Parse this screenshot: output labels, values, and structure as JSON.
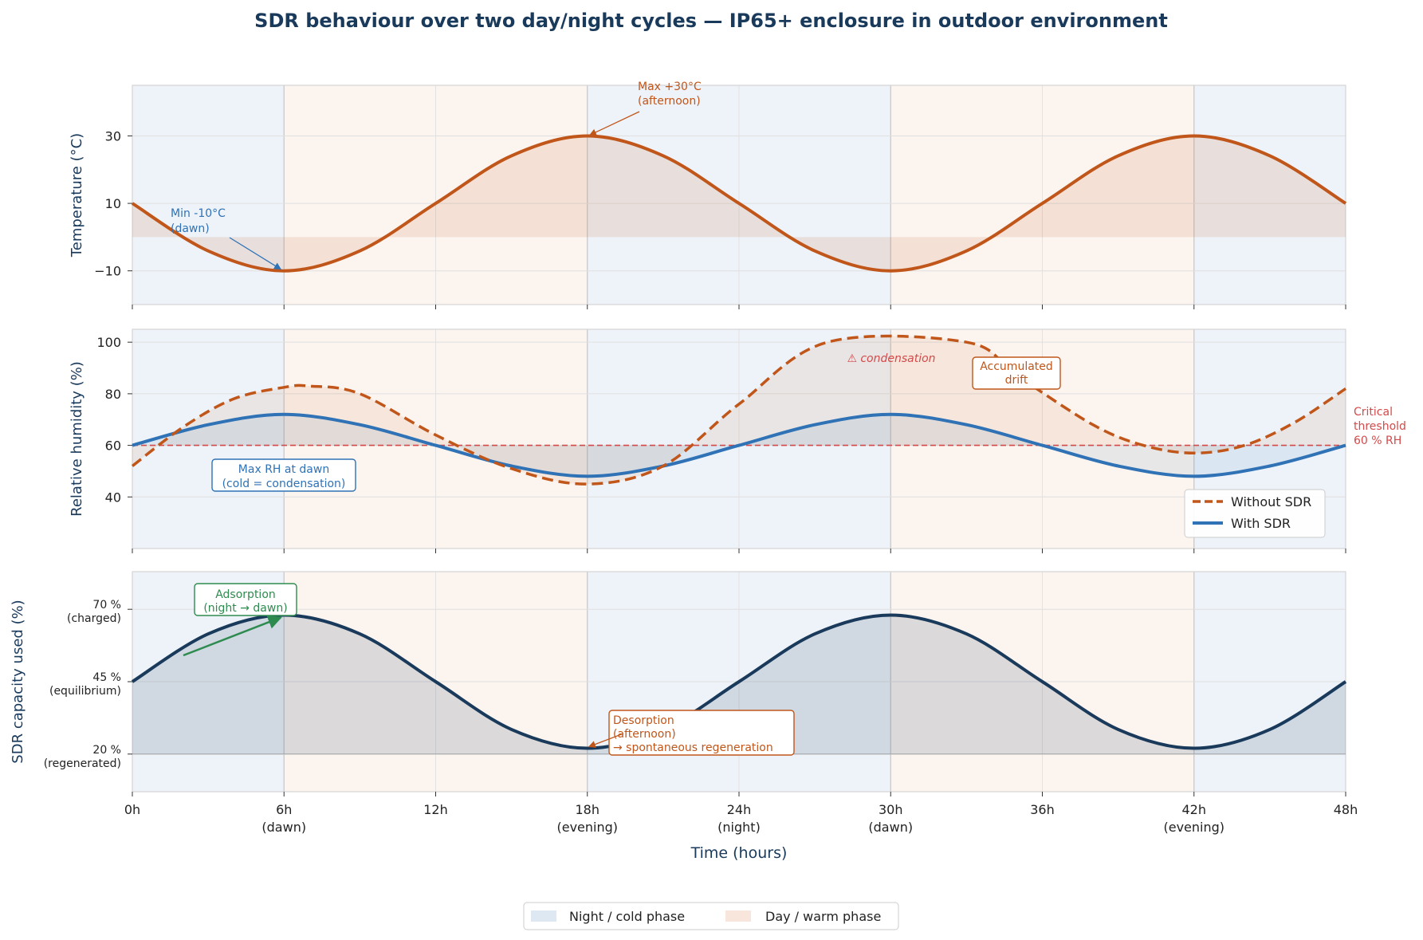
{
  "colors": {
    "night": "#dde8f3",
    "day": "#f8e6dc",
    "temp": "#c0561a",
    "withSdr": "#2f72b5",
    "withoutSdr": "#c0561a",
    "threshold": "#d24a4a",
    "sdr": "#1a3a5c",
    "adsorption": "#2e8b4f",
    "title": "#1a3a5c"
  },
  "title": "SDR behaviour over two day/night cycles — IP65+ enclosure in outdoor environment",
  "x_axis": {
    "label": "Time (hours)",
    "ticks": [
      {
        "v": 0,
        "l1": "0h",
        "l2": ""
      },
      {
        "v": 6,
        "l1": "6h",
        "l2": "(dawn)"
      },
      {
        "v": 12,
        "l1": "12h",
        "l2": ""
      },
      {
        "v": 18,
        "l1": "18h",
        "l2": "(evening)"
      },
      {
        "v": 24,
        "l1": "24h",
        "l2": "(night)"
      },
      {
        "v": 30,
        "l1": "30h",
        "l2": "(dawn)"
      },
      {
        "v": 36,
        "l1": "36h",
        "l2": ""
      },
      {
        "v": 42,
        "l1": "42h",
        "l2": "(evening)"
      },
      {
        "v": 48,
        "l1": "48h",
        "l2": ""
      }
    ]
  },
  "phases": [
    {
      "start": 0,
      "end": 6,
      "kind": "night"
    },
    {
      "start": 6,
      "end": 18,
      "kind": "day"
    },
    {
      "start": 18,
      "end": 30,
      "kind": "night"
    },
    {
      "start": 30,
      "end": 42,
      "kind": "day"
    },
    {
      "start": 42,
      "end": 48,
      "kind": "night"
    }
  ],
  "legend": {
    "night": "Night / cold phase",
    "day": "Day / warm phase"
  },
  "chart_data": [
    {
      "type": "line",
      "ylabel": "Temperature (°C)",
      "ylim": [
        -20,
        45
      ],
      "yticks": [
        {
          "v": 30,
          "l": "30"
        },
        {
          "v": 10,
          "l": "10"
        },
        {
          "v": -10,
          "l": "−10"
        }
      ],
      "fill_baseline": 0,
      "series": [
        {
          "name": "Temperature",
          "x": [
            0,
            3,
            6,
            9,
            12,
            15,
            18,
            21,
            24,
            27,
            30,
            33,
            36,
            39,
            42,
            45,
            48
          ],
          "values": [
            10,
            -4.1,
            -10,
            -4.1,
            10,
            24.1,
            30,
            24.1,
            10,
            -4.1,
            -10,
            -4.1,
            10,
            24.1,
            30,
            24.1,
            10
          ]
        }
      ],
      "annotations": [
        {
          "id": "tmin",
          "text": [
            "Min -10°C",
            "(dawn)"
          ]
        },
        {
          "id": "tmax",
          "text": [
            "Max +30°C",
            "(afternoon)"
          ]
        }
      ]
    },
    {
      "type": "line",
      "ylabel": "Relative humidity (%)",
      "ylim": [
        20,
        105
      ],
      "yticks": [
        {
          "v": 100,
          "l": "100"
        },
        {
          "v": 80,
          "l": "80"
        },
        {
          "v": 60,
          "l": "60"
        },
        {
          "v": 40,
          "l": "40"
        }
      ],
      "threshold": {
        "value": 60,
        "label": [
          "Critical",
          "threshold",
          "60 % RH"
        ]
      },
      "series": [
        {
          "name": "Without SDR",
          "style": "dashed",
          "x": [
            0,
            2,
            4,
            6,
            7,
            9,
            12,
            15,
            18,
            21,
            24,
            27.5,
            33,
            35,
            38,
            40,
            42,
            44,
            46,
            48
          ],
          "values": [
            52,
            67,
            78,
            82.5,
            83,
            80,
            64,
            51,
            45,
            52,
            76,
            100,
            100,
            87,
            68,
            60,
            57,
            60,
            69,
            82
          ]
        },
        {
          "name": "With SDR",
          "style": "solid",
          "x": [
            0,
            3,
            6,
            9,
            12,
            15,
            18,
            21,
            24,
            27,
            30,
            33,
            36,
            39,
            42,
            45,
            48
          ],
          "values": [
            60,
            68,
            72,
            68,
            60,
            52,
            48,
            52,
            60,
            68,
            72,
            68,
            60,
            52,
            48,
            52,
            60
          ]
        }
      ],
      "annotations": [
        {
          "id": "cond",
          "text": [
            "⚠ condensation"
          ]
        },
        {
          "id": "drift",
          "text": [
            "Accumulated",
            "drift"
          ]
        },
        {
          "id": "maxrh",
          "text": [
            "Max RH at dawn",
            "(cold = condensation)"
          ]
        }
      ]
    },
    {
      "type": "area",
      "ylabel": "SDR capacity used (%)",
      "ylim": [
        7,
        83
      ],
      "baseline": 20,
      "yticks": [
        {
          "v": 70,
          "l1": "70 %",
          "l2": "(charged)"
        },
        {
          "v": 45,
          "l1": "45 %",
          "l2": "(equilibrium)"
        },
        {
          "v": 20,
          "l1": "20 %",
          "l2": "(regenerated)"
        }
      ],
      "series": [
        {
          "name": "SDR capacity used",
          "x": [
            0,
            3,
            6,
            9,
            12,
            15,
            18,
            21,
            24,
            27,
            30,
            33,
            36,
            39,
            42,
            45,
            48
          ],
          "values": [
            45,
            61.5,
            68,
            61.5,
            45,
            28.5,
            22,
            28.5,
            45,
            61.5,
            68,
            61.5,
            45,
            28.5,
            22,
            28.5,
            45
          ]
        }
      ],
      "annotations": [
        {
          "id": "ads",
          "text": [
            "Adsorption",
            "(night → dawn)"
          ]
        },
        {
          "id": "des",
          "text": [
            "Desorption",
            "(afternoon)",
            "→ spontaneous regeneration"
          ]
        }
      ]
    }
  ]
}
